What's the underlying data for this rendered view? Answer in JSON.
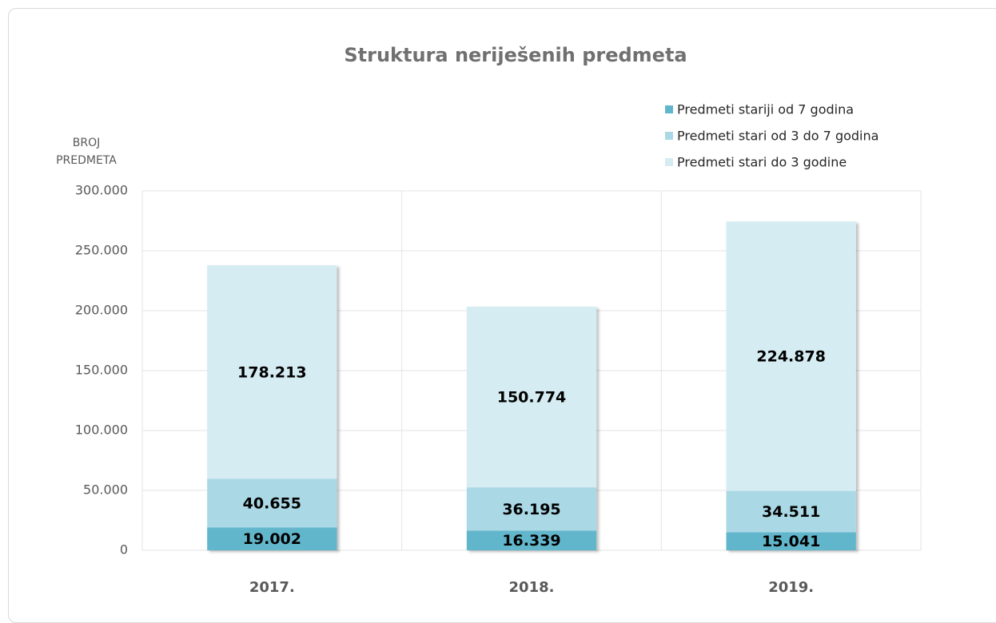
{
  "chart_data": {
    "type": "stacked_bar",
    "title": "Struktura neriješenih predmeta",
    "y_label": "BROJ PREDMETA",
    "categories": [
      "2017.",
      "2018.",
      "2019."
    ],
    "series": [
      {
        "name": "Predmeti stariji od 7 godina",
        "color": "#62b6cc",
        "values": [
          19002,
          16339,
          15041
        ],
        "value_labels": [
          "19.002",
          "16.339",
          "15.041"
        ]
      },
      {
        "name": "Predmeti stari od 3 do 7 godina",
        "color": "#aad8e5",
        "values": [
          40655,
          36195,
          34511
        ],
        "value_labels": [
          "40.655",
          "36.195",
          "34.511"
        ]
      },
      {
        "name": "Predmeti stari do 3 godine",
        "color": "#d4ecf2",
        "values": [
          178213,
          150774,
          224878
        ],
        "value_labels": [
          "178.213",
          "150.774",
          "224.878"
        ]
      }
    ],
    "ylim": [
      0,
      300000
    ],
    "yticks": [
      0,
      {
        "value": 50000,
        "label": "50.000"
      },
      {
        "value": 100000,
        "label": "100.000"
      },
      {
        "value": 150000,
        "label": "150.000"
      },
      {
        "value": 200000,
        "label": "200.000"
      },
      {
        "value": 250000,
        "label": "250.000"
      },
      {
        "value": 300000,
        "label": "300.000"
      }
    ],
    "grid": true,
    "legend": "top-right"
  }
}
